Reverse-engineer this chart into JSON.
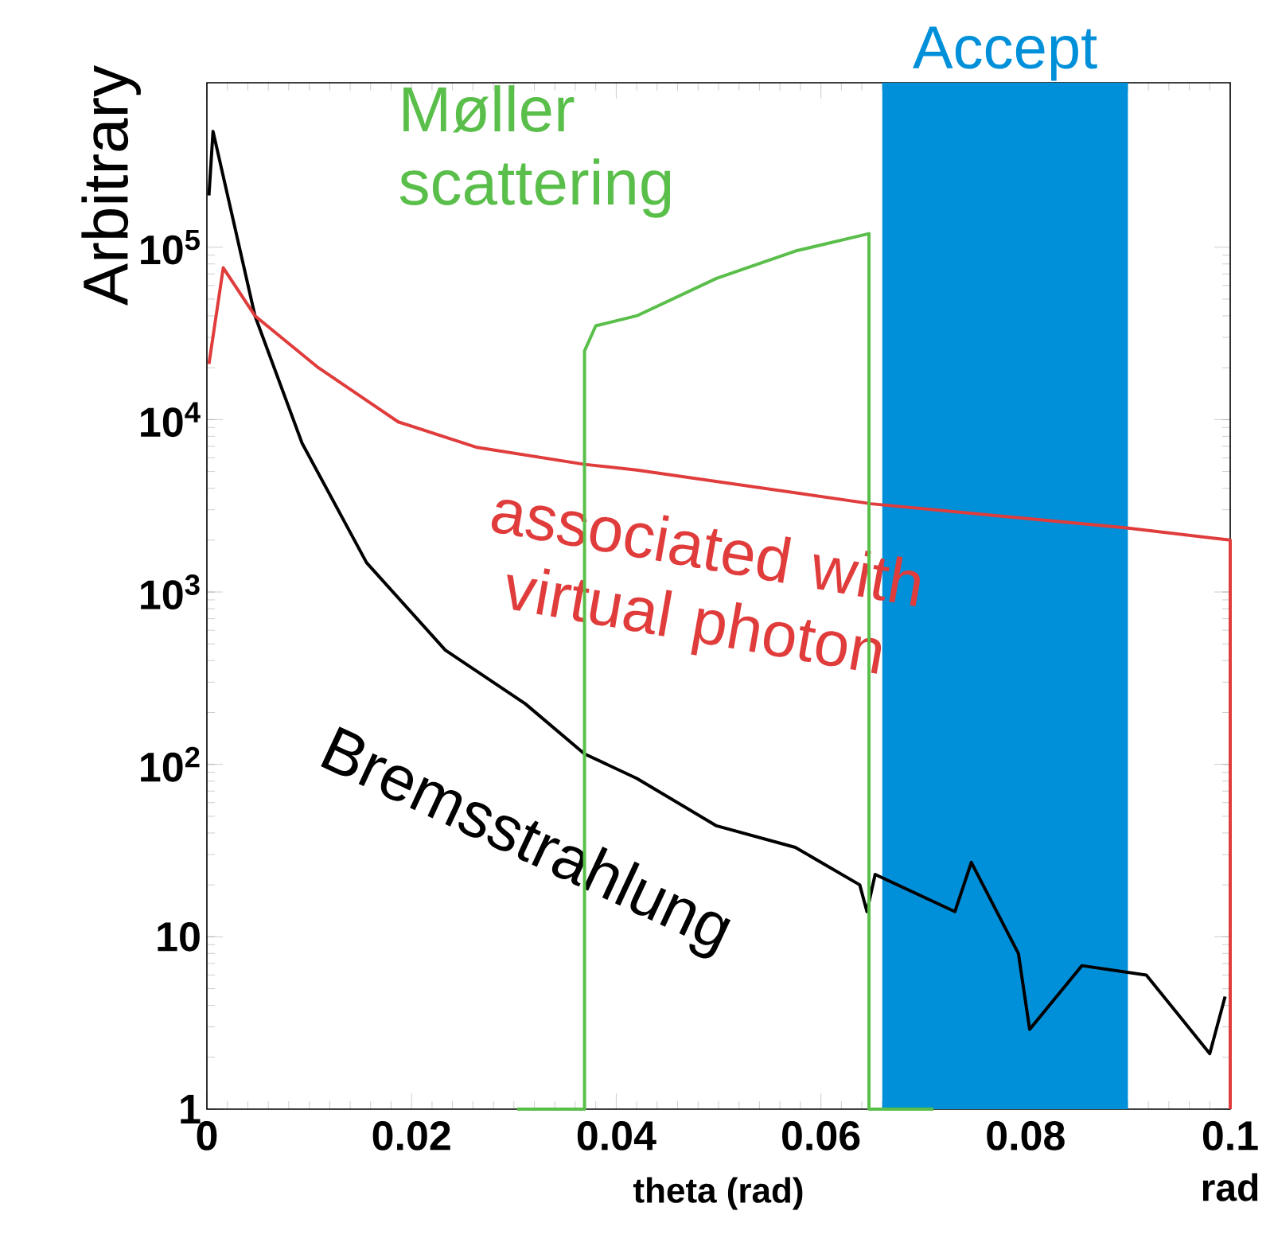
{
  "chart_data": {
    "type": "line",
    "xlabel": "theta (rad)",
    "ylabel": "Arbitrary",
    "log": "y",
    "xlim": [
      0,
      0.1
    ],
    "ylim": [
      1,
      900000
    ],
    "xticks": [
      0,
      0.02,
      0.04,
      0.06,
      0.08,
      0.1
    ],
    "yticks": [
      1,
      10,
      {
        "value": 100,
        "label": "10$^{2}$"
      },
      {
        "value": 1000,
        "label": "10$^{3}$"
      },
      {
        "value": 10000,
        "label": "10$^{4}$"
      },
      {
        "value": 100000,
        "label": "10$^{5}$"
      }
    ],
    "grid": false,
    "bands": [
      {
        "axis": "x",
        "from": 0.066,
        "to": 0.09,
        "label": "Accept",
        "color": "#0090da"
      }
    ],
    "annotations": [
      "rad"
    ],
    "series": [
      {
        "name": "Bremsstrahlung",
        "color": "#000000",
        "x": [
          0.0002,
          0.0006,
          0.0047,
          0.0093,
          0.0156,
          0.0233,
          0.0311,
          0.0369,
          0.042,
          0.0498,
          0.0575,
          0.0638,
          0.0645,
          0.0653,
          0.0731,
          0.0747,
          0.0793,
          0.0804,
          0.0855,
          0.0918,
          0.098,
          0.0995
        ],
        "values": [
          200000,
          470000,
          40000,
          7300,
          1480,
          460,
          225,
          115,
          83,
          44,
          33,
          20,
          14,
          23,
          14,
          27,
          8,
          2.9,
          6.8,
          6,
          2.1,
          4.5
        ]
      },
      {
        "name": "associated with virtual photon",
        "color": "#e03c3c",
        "x": [
          0.0002,
          0.0016,
          0.0047,
          0.0109,
          0.0187,
          0.0264,
          0.0369,
          0.042,
          0.0649,
          0.0897,
          0.1,
          0.1
        ],
        "values": [
          21000,
          76000,
          40000,
          20000,
          9700,
          6900,
          5500,
          5100,
          3250,
          2360,
          2000,
          1
        ]
      },
      {
        "name": "Møller scattering",
        "color": "#5abf4a",
        "x": [
          0.0303,
          0.0369,
          0.0369,
          0.038,
          0.042,
          0.0498,
          0.0575,
          0.0647,
          0.0647,
          0.071
        ],
        "values": [
          1,
          1,
          25000,
          35000,
          40000,
          66000,
          95000,
          120000,
          1,
          1
        ]
      }
    ]
  }
}
